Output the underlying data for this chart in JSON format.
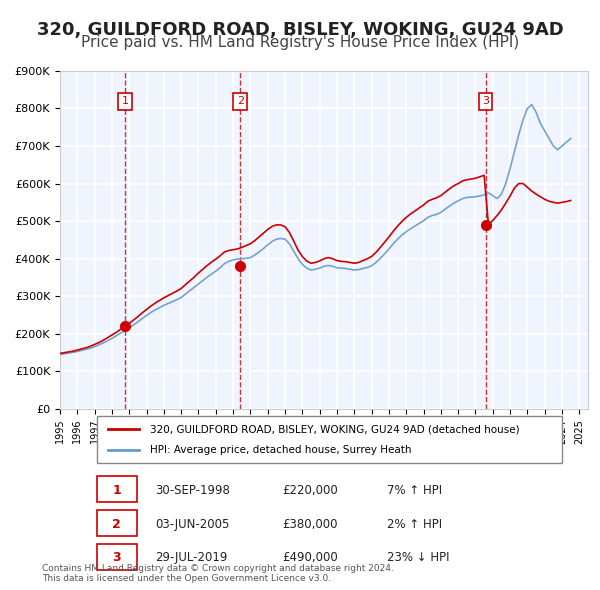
{
  "title": "320, GUILDFORD ROAD, BISLEY, WOKING, GU24 9AD",
  "subtitle": "Price paid vs. HM Land Registry's House Price Index (HPI)",
  "title_fontsize": 13,
  "subtitle_fontsize": 11,
  "xlabel": "",
  "ylabel": "",
  "ylim": [
    0,
    900000
  ],
  "xlim": [
    1995.0,
    2025.5
  ],
  "yticks": [
    0,
    100000,
    200000,
    300000,
    400000,
    500000,
    600000,
    700000,
    800000,
    900000
  ],
  "ytick_labels": [
    "£0",
    "£100K",
    "£200K",
    "£300K",
    "£400K",
    "£500K",
    "£600K",
    "£700K",
    "£800K",
    "£900K"
  ],
  "xticks": [
    1995,
    1996,
    1997,
    1998,
    1999,
    2000,
    2001,
    2002,
    2003,
    2004,
    2005,
    2006,
    2007,
    2008,
    2009,
    2010,
    2011,
    2012,
    2013,
    2014,
    2015,
    2016,
    2017,
    2018,
    2019,
    2020,
    2021,
    2022,
    2023,
    2024,
    2025
  ],
  "background_color": "#f0f4ff",
  "plot_bg_color": "#f0f4ff",
  "grid_color": "#ffffff",
  "red_line_color": "#cc0000",
  "blue_line_color": "#6699cc",
  "sale_marker_color": "#cc0000",
  "vline_color": "#cc3333",
  "sale_dates": [
    1998.75,
    2005.42,
    2019.58
  ],
  "sale_prices": [
    220000,
    380000,
    490000
  ],
  "sale_numbers": [
    "1",
    "2",
    "3"
  ],
  "legend_red_label": "320, GUILDFORD ROAD, BISLEY, WOKING, GU24 9AD (detached house)",
  "legend_blue_label": "HPI: Average price, detached house, Surrey Heath",
  "table_rows": [
    [
      "1",
      "30-SEP-1998",
      "£220,000",
      "7% ↑ HPI"
    ],
    [
      "2",
      "03-JUN-2005",
      "£380,000",
      "2% ↑ HPI"
    ],
    [
      "3",
      "29-JUL-2019",
      "£490,000",
      "23% ↓ HPI"
    ]
  ],
  "footer_text": "Contains HM Land Registry data © Crown copyright and database right 2024.\nThis data is licensed under the Open Government Licence v3.0.",
  "hpi_data_x": [
    1995.0,
    1995.25,
    1995.5,
    1995.75,
    1996.0,
    1996.25,
    1996.5,
    1996.75,
    1997.0,
    1997.25,
    1997.5,
    1997.75,
    1998.0,
    1998.25,
    1998.5,
    1998.75,
    1999.0,
    1999.25,
    1999.5,
    1999.75,
    2000.0,
    2000.25,
    2000.5,
    2000.75,
    2001.0,
    2001.25,
    2001.5,
    2001.75,
    2002.0,
    2002.25,
    2002.5,
    2002.75,
    2003.0,
    2003.25,
    2003.5,
    2003.75,
    2004.0,
    2004.25,
    2004.5,
    2004.75,
    2005.0,
    2005.25,
    2005.5,
    2005.75,
    2006.0,
    2006.25,
    2006.5,
    2006.75,
    2007.0,
    2007.25,
    2007.5,
    2007.75,
    2008.0,
    2008.25,
    2008.5,
    2008.75,
    2009.0,
    2009.25,
    2009.5,
    2009.75,
    2010.0,
    2010.25,
    2010.5,
    2010.75,
    2011.0,
    2011.25,
    2011.5,
    2011.75,
    2012.0,
    2012.25,
    2012.5,
    2012.75,
    2013.0,
    2013.25,
    2013.5,
    2013.75,
    2014.0,
    2014.25,
    2014.5,
    2014.75,
    2015.0,
    2015.25,
    2015.5,
    2015.75,
    2016.0,
    2016.25,
    2016.5,
    2016.75,
    2017.0,
    2017.25,
    2017.5,
    2017.75,
    2018.0,
    2018.25,
    2018.5,
    2018.75,
    2019.0,
    2019.25,
    2019.5,
    2019.75,
    2020.0,
    2020.25,
    2020.5,
    2020.75,
    2021.0,
    2021.25,
    2021.5,
    2021.75,
    2022.0,
    2022.25,
    2022.5,
    2022.75,
    2023.0,
    2023.25,
    2023.5,
    2023.75,
    2024.0,
    2024.25,
    2024.5
  ],
  "hpi_data_y": [
    145000,
    147000,
    149000,
    151000,
    153000,
    156000,
    159000,
    162000,
    166000,
    171000,
    176000,
    182000,
    188000,
    195000,
    202000,
    209000,
    216000,
    224000,
    232000,
    241000,
    249000,
    257000,
    264000,
    270000,
    276000,
    281000,
    286000,
    291000,
    297000,
    306000,
    315000,
    324000,
    333000,
    342000,
    351000,
    359000,
    367000,
    376000,
    387000,
    393000,
    397000,
    399000,
    400000,
    401000,
    403000,
    410000,
    418000,
    427000,
    437000,
    446000,
    452000,
    454000,
    452000,
    440000,
    420000,
    400000,
    385000,
    375000,
    370000,
    372000,
    375000,
    380000,
    382000,
    380000,
    376000,
    375000,
    374000,
    372000,
    370000,
    371000,
    374000,
    377000,
    381000,
    390000,
    401000,
    413000,
    426000,
    440000,
    452000,
    463000,
    472000,
    480000,
    487000,
    494000,
    501000,
    510000,
    515000,
    518000,
    523000,
    532000,
    540000,
    548000,
    554000,
    560000,
    563000,
    564000,
    565000,
    567000,
    570000,
    575000,
    568000,
    560000,
    572000,
    600000,
    640000,
    685000,
    730000,
    770000,
    800000,
    810000,
    790000,
    760000,
    740000,
    720000,
    700000,
    690000,
    700000,
    710000,
    720000
  ],
  "red_data_x": [
    1995.0,
    1995.25,
    1995.5,
    1995.75,
    1996.0,
    1996.25,
    1996.5,
    1996.75,
    1997.0,
    1997.25,
    1997.5,
    1997.75,
    1998.0,
    1998.25,
    1998.5,
    1998.75,
    1999.0,
    1999.25,
    1999.5,
    1999.75,
    2000.0,
    2000.25,
    2000.5,
    2000.75,
    2001.0,
    2001.25,
    2001.5,
    2001.75,
    2002.0,
    2002.25,
    2002.5,
    2002.75,
    2003.0,
    2003.25,
    2003.5,
    2003.75,
    2004.0,
    2004.25,
    2004.5,
    2004.75,
    2005.0,
    2005.25,
    2005.5,
    2005.75,
    2006.0,
    2006.25,
    2006.5,
    2006.75,
    2007.0,
    2007.25,
    2007.5,
    2007.75,
    2008.0,
    2008.25,
    2008.5,
    2008.75,
    2009.0,
    2009.25,
    2009.5,
    2009.75,
    2010.0,
    2010.25,
    2010.5,
    2010.75,
    2011.0,
    2011.25,
    2011.5,
    2011.75,
    2012.0,
    2012.25,
    2012.5,
    2012.75,
    2013.0,
    2013.25,
    2013.5,
    2013.75,
    2014.0,
    2014.25,
    2014.5,
    2014.75,
    2015.0,
    2015.25,
    2015.5,
    2015.75,
    2016.0,
    2016.25,
    2016.5,
    2016.75,
    2017.0,
    2017.25,
    2017.5,
    2017.75,
    2018.0,
    2018.25,
    2018.5,
    2018.75,
    2019.0,
    2019.25,
    2019.5,
    2019.75,
    2020.0,
    2020.25,
    2020.5,
    2020.75,
    2021.0,
    2021.25,
    2021.5,
    2021.75,
    2022.0,
    2022.25,
    2022.5,
    2022.75,
    2023.0,
    2023.25,
    2023.5,
    2023.75,
    2024.0,
    2024.25,
    2024.5
  ],
  "red_data_y": [
    148000,
    150000,
    152000,
    154000,
    157000,
    160000,
    163000,
    167000,
    172000,
    177000,
    183000,
    190000,
    197000,
    204000,
    212000,
    220000,
    228000,
    237000,
    246000,
    256000,
    265000,
    274000,
    282000,
    289000,
    296000,
    302000,
    308000,
    314000,
    321000,
    331000,
    341000,
    351000,
    362000,
    372000,
    382000,
    391000,
    399000,
    408000,
    418000,
    422000,
    424000,
    426000,
    430000,
    435000,
    440000,
    448000,
    458000,
    468000,
    478000,
    486000,
    490000,
    490000,
    485000,
    470000,
    447000,
    423000,
    406000,
    394000,
    388000,
    390000,
    394000,
    400000,
    403000,
    400000,
    395000,
    393000,
    392000,
    390000,
    388000,
    390000,
    395000,
    400000,
    406000,
    417000,
    430000,
    444000,
    458000,
    473000,
    487000,
    499000,
    510000,
    519000,
    527000,
    535000,
    543000,
    553000,
    558000,
    562000,
    568000,
    577000,
    586000,
    594000,
    600000,
    607000,
    610000,
    612000,
    614000,
    618000,
    622000,
    490000,
    502000,
    515000,
    530000,
    548000,
    567000,
    588000,
    600000,
    600000,
    590000,
    580000,
    572000,
    565000,
    558000,
    553000,
    550000,
    548000,
    550000,
    552000,
    555000
  ]
}
